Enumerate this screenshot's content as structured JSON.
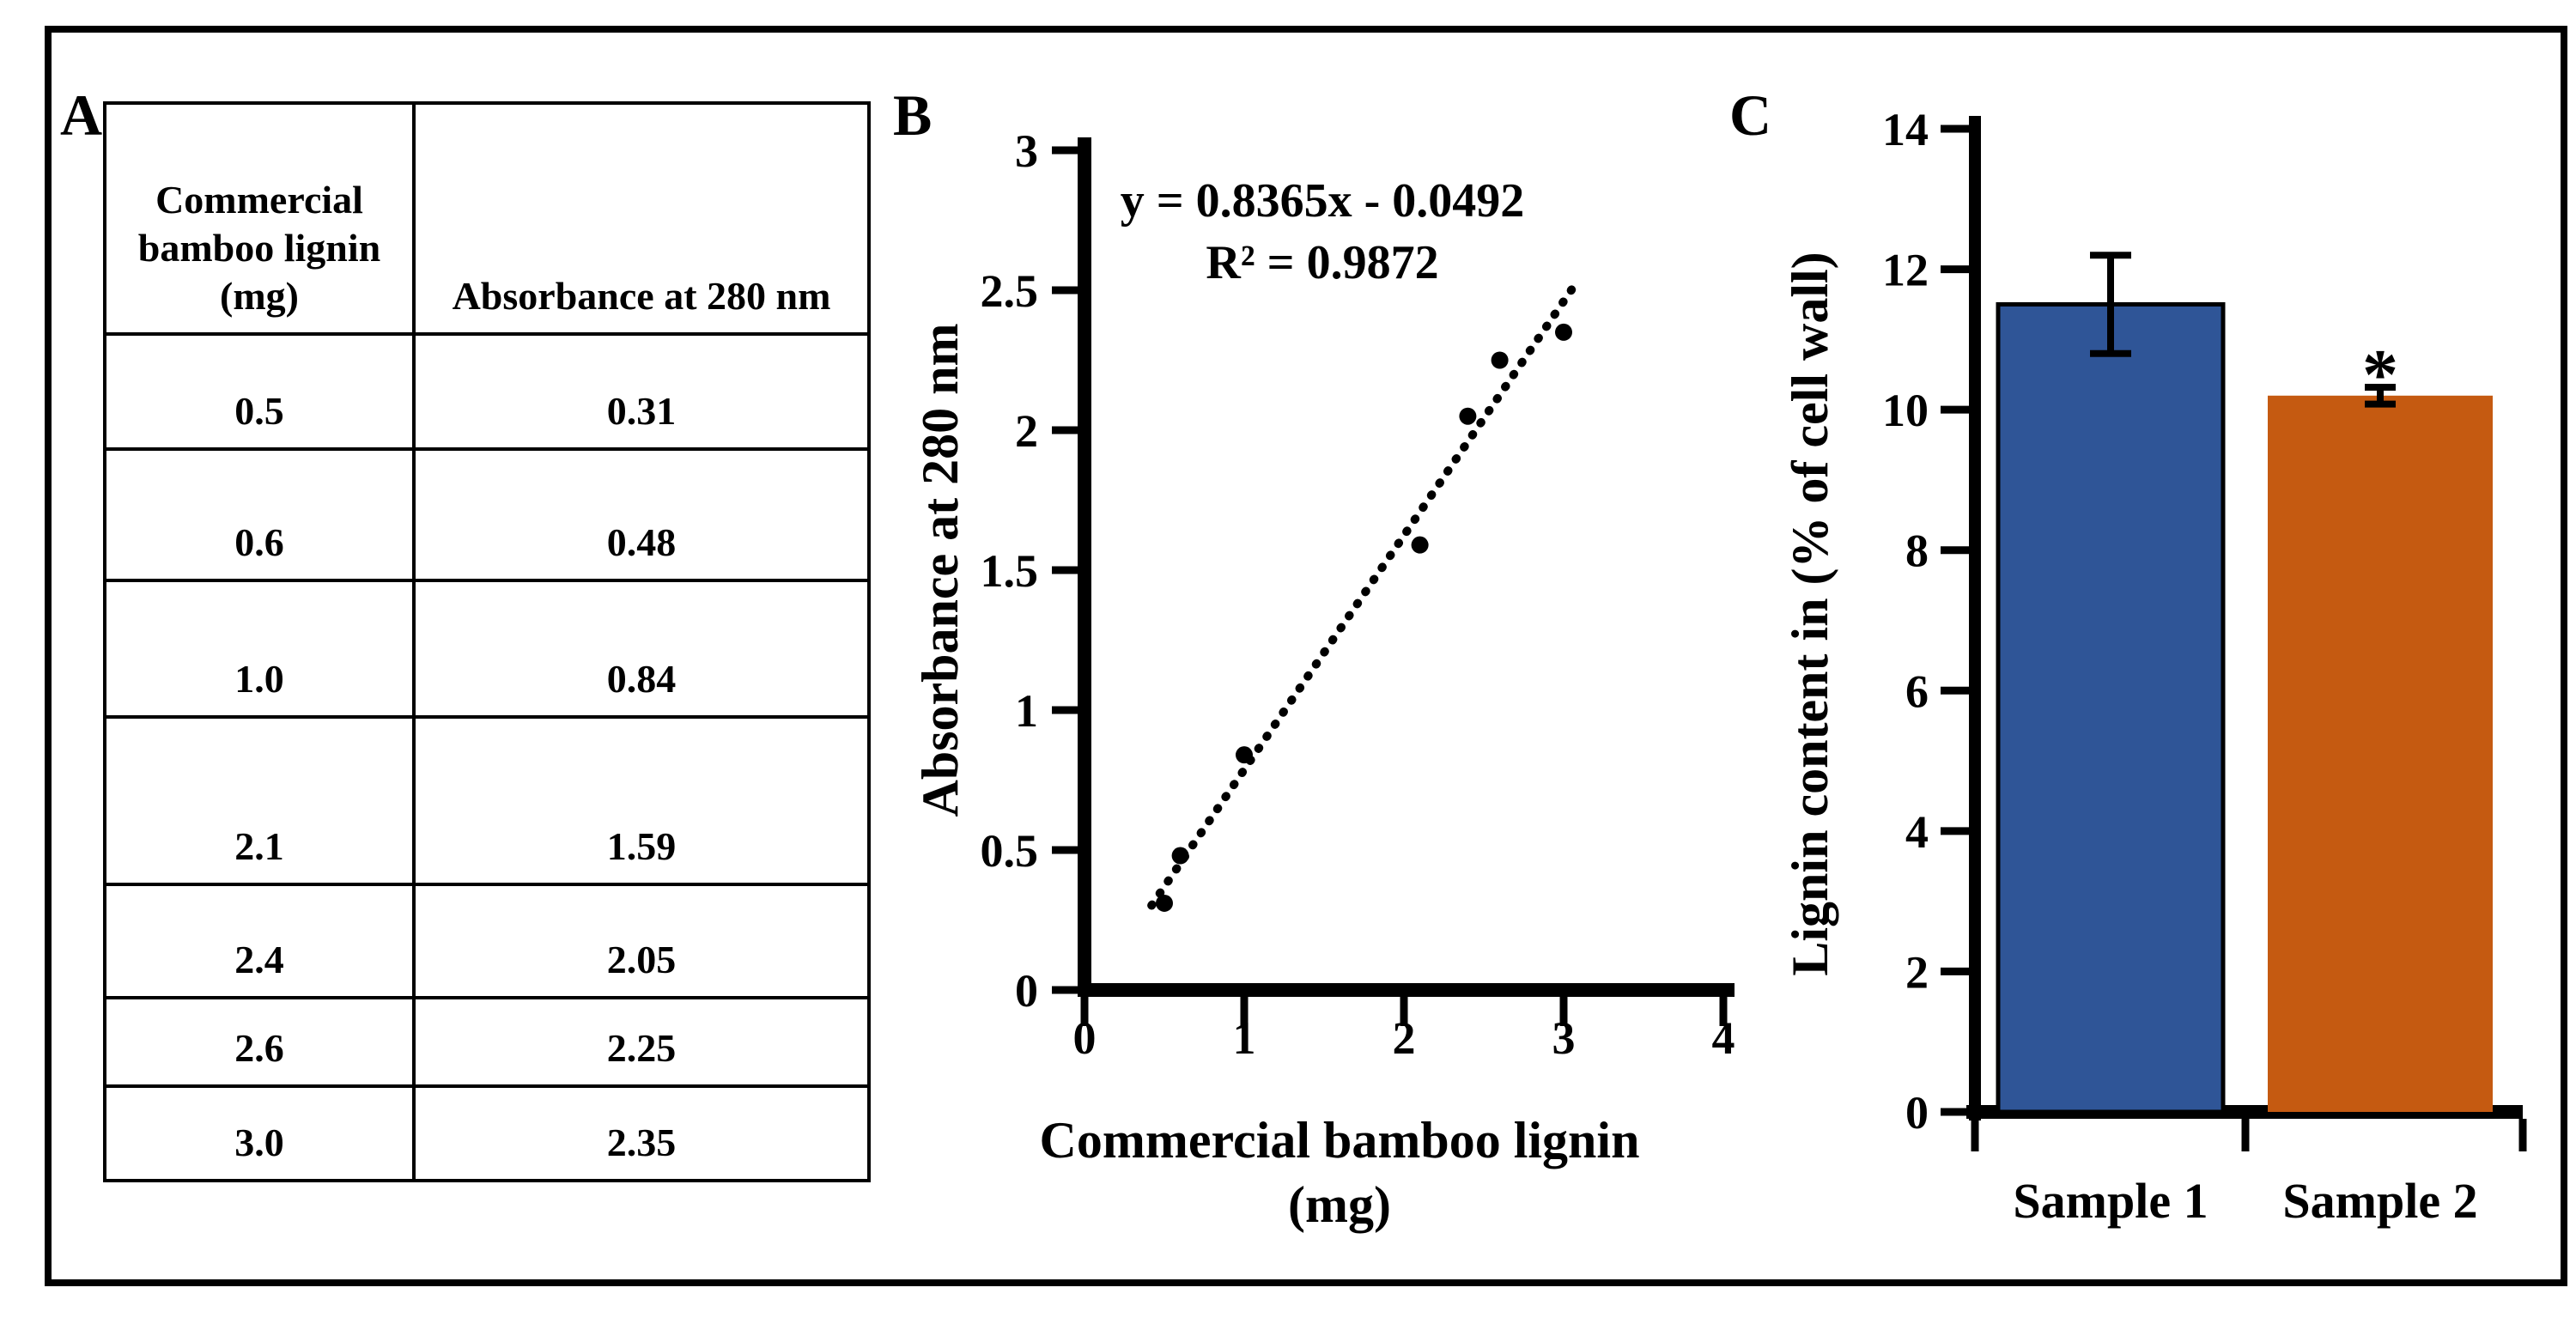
{
  "figure": {
    "background": "#FFFFFF",
    "border_color": "#000000"
  },
  "panel_a": {
    "label": "A",
    "table": {
      "col1_header_lines": [
        "Commercial",
        "bamboo lignin",
        "(mg)"
      ],
      "col2_header": "Absorbance at 280 nm",
      "rows": [
        [
          "0.5",
          "0.31"
        ],
        [
          "0.6",
          "0.48"
        ],
        [
          "1.0",
          "0.84"
        ],
        [
          "2.1",
          "1.59"
        ],
        [
          "2.4",
          "2.05"
        ],
        [
          "2.6",
          "2.25"
        ],
        [
          "3.0",
          "2.35"
        ]
      ]
    }
  },
  "panel_b": {
    "label": "B"
  },
  "panel_c": {
    "label": "C"
  },
  "chart_data": [
    {
      "type": "scatter",
      "panel": "B",
      "x_values": [
        0.5,
        0.6,
        1.0,
        2.1,
        2.4,
        2.6,
        3.0
      ],
      "y_values": [
        0.31,
        0.48,
        0.84,
        1.59,
        2.05,
        2.25,
        2.35
      ],
      "trendline": {
        "label_line1": "y = 0.8365x - 0.0492",
        "label_line2": "R² = 0.9872",
        "slope": 0.8365,
        "intercept": -0.0492,
        "x_start": 0.42,
        "x_end": 3.06,
        "style": "dotted"
      },
      "xlabel_line1": "Commercial bamboo lignin",
      "xlabel_line2": "(mg)",
      "ylabel": "Absorbance at 280 nm",
      "xlim": [
        0,
        4
      ],
      "ylim": [
        0,
        3
      ],
      "x_ticks": [
        0,
        1,
        2,
        3,
        4
      ],
      "y_ticks": [
        0,
        0.5,
        1,
        1.5,
        2,
        2.5,
        3
      ],
      "point_color": "#000000",
      "grid": false,
      "legend": "none"
    },
    {
      "type": "bar",
      "panel": "C",
      "categories": [
        "Sample 1",
        "Sample 2"
      ],
      "values": [
        11.5,
        10.2
      ],
      "error_bars": [
        0.7,
        0.12
      ],
      "significance": [
        "",
        "*"
      ],
      "bar_colors": [
        "#2F5597",
        "#C55A11"
      ],
      "bar_outline_colors": [
        "#000000",
        "none"
      ],
      "ylabel": "Lignin content in (% of cell wall)",
      "ylim": [
        0,
        14
      ],
      "y_ticks": [
        0,
        2,
        4,
        6,
        8,
        10,
        12,
        14
      ],
      "grid": false,
      "legend": "none"
    }
  ]
}
